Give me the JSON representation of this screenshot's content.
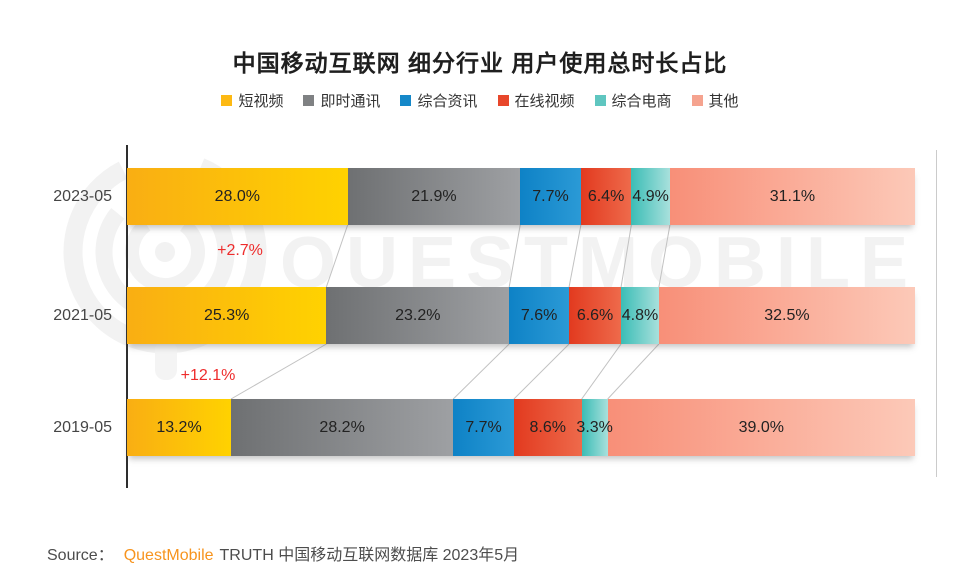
{
  "title": "中国移动互联网 细分行业 用户使用总时长占比",
  "watermark": {
    "text": "QUESTMOBILE"
  },
  "source": {
    "prefix": "Source：",
    "brand": "QuestMobile",
    "suffix": "TRUTH 中国移动互联网数据库 2023年5月",
    "brand_color": "#F7941E",
    "text_color": "#4d4d4d"
  },
  "chart_data": {
    "type": "bar",
    "orientation": "horizontal-stacked",
    "title": "中国移动互联网 细分行业 用户使用总时长占比",
    "categories": [
      "2023-05",
      "2021-05",
      "2019-05"
    ],
    "series": [
      {
        "name": "短视频",
        "values": [
          28.0,
          25.3,
          13.2
        ],
        "color": "#FDB913",
        "gradient": [
          "#F9AE13",
          "#FFD200"
        ]
      },
      {
        "name": "即时通讯",
        "values": [
          21.9,
          23.2,
          28.2
        ],
        "color": "#7F8183",
        "gradient": [
          "#6E7072",
          "#9EA0A3"
        ]
      },
      {
        "name": "综合资讯",
        "values": [
          7.7,
          7.6,
          7.7
        ],
        "color": "#1588C9",
        "gradient": [
          "#0E82C6",
          "#2B9AD6"
        ]
      },
      {
        "name": "在线视频",
        "values": [
          6.4,
          6.6,
          8.6
        ],
        "color": "#E8472B",
        "gradient": [
          "#E23A1F",
          "#EE6A4B"
        ]
      },
      {
        "name": "综合电商",
        "values": [
          4.9,
          4.8,
          3.3
        ],
        "color": "#5FC6C0",
        "gradient": [
          "#3BBDB6",
          "#A8E0DC"
        ]
      },
      {
        "name": "其他",
        "values": [
          31.1,
          32.5,
          39.0
        ],
        "color": "#F5A38F",
        "gradient": [
          "#F88F78",
          "#FCC9B8"
        ]
      }
    ],
    "value_suffix": "%",
    "xlim": [
      0,
      100
    ],
    "legend_position": "top",
    "grid": false,
    "annotations": [
      {
        "text": "+2.7%",
        "x": 240,
        "y": 242,
        "color": "#EE2C2C"
      },
      {
        "text": "+12.1%",
        "x": 208,
        "y": 367,
        "color": "#EE2C2C"
      }
    ]
  }
}
